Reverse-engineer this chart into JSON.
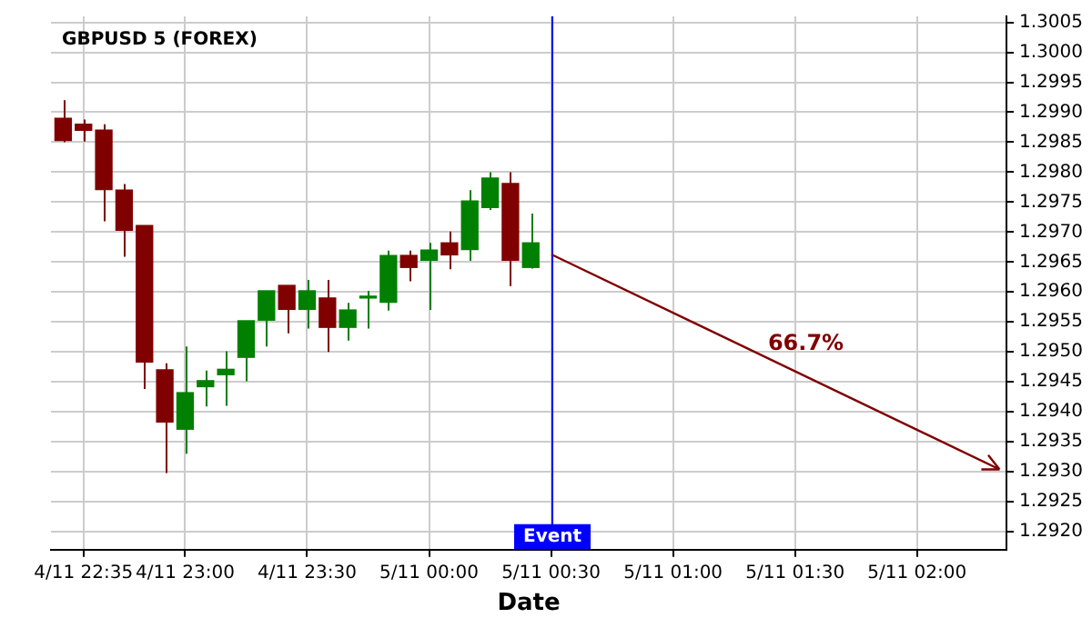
{
  "chart_data": {
    "type": "candlestick",
    "title": "GBPUSD 5 (FOREX)",
    "xlabel": "Date",
    "x": [
      "--11-04T22:30",
      "--11-04T22:35",
      "--11-04T22:40",
      "--11-04T22:45",
      "--11-04T22:50",
      "--11-04T22:55",
      "--11-04T23:00",
      "--11-04T23:05",
      "--11-04T23:10",
      "--11-04T23:15",
      "--11-04T23:20",
      "--11-04T23:25",
      "--11-04T23:30",
      "--11-04T23:35",
      "--11-04T23:40",
      "--11-04T23:45",
      "--11-04T23:50",
      "--11-04T23:55",
      "--11-05T00:00",
      "--11-05T00:05",
      "--11-05T00:10",
      "--11-05T00:15",
      "--11-05T00:20",
      "--11-05T00:25"
    ],
    "ohlc": [
      [
        1.2989,
        1.2992,
        1.2985,
        1.29853
      ],
      [
        1.2988,
        1.29888,
        1.29851,
        1.2987
      ],
      [
        1.2987,
        1.2988,
        1.29718,
        1.29771
      ],
      [
        1.2977,
        1.2978,
        1.29659,
        1.29703
      ],
      [
        1.29711,
        1.29711,
        1.29438,
        1.29483
      ],
      [
        1.2947,
        1.29481,
        1.29298,
        1.29383
      ],
      [
        1.29371,
        1.29509,
        1.2933,
        1.29432
      ],
      [
        1.29442,
        1.29469,
        1.29409,
        1.29452
      ],
      [
        1.29462,
        1.29501,
        1.2941,
        1.29471
      ],
      [
        1.29491,
        1.29552,
        1.29451,
        1.29552
      ],
      [
        1.29553,
        1.29602,
        1.29509,
        1.29602
      ],
      [
        1.29611,
        1.29611,
        1.29531,
        1.29571
      ],
      [
        1.29571,
        1.2962,
        1.29539,
        1.29602
      ],
      [
        1.2959,
        1.2962,
        1.295,
        1.29541
      ],
      [
        1.29541,
        1.29582,
        1.29519,
        1.2957
      ],
      [
        1.2959,
        1.29602,
        1.29539,
        1.29592
      ],
      [
        1.29583,
        1.29669,
        1.29569,
        1.29661
      ],
      [
        1.29661,
        1.29669,
        1.29618,
        1.29641
      ],
      [
        1.29653,
        1.29682,
        1.2957,
        1.2967
      ],
      [
        1.29682,
        1.29701,
        1.29638,
        1.29662
      ],
      [
        1.29671,
        1.2977,
        1.29652,
        1.29752
      ],
      [
        1.29741,
        1.298,
        1.29737,
        1.2979
      ],
      [
        1.29781,
        1.298,
        1.2961,
        1.29653
      ],
      [
        1.29641,
        1.29731,
        1.29639,
        1.29682
      ]
    ],
    "colors": [
      "#800000",
      "#800000",
      "#800000",
      "#800000",
      "#800000",
      "#800000",
      "#008000",
      "#008000",
      "#008000",
      "#008000",
      "#008000",
      "#800000",
      "#008000",
      "#800000",
      "#008000",
      "#008000",
      "#008000",
      "#800000",
      "#008000",
      "#800000",
      "#008000",
      "#008000",
      "#800000",
      "#008000"
    ],
    "ref_lines": [
      {
        "axis": "x",
        "value": "--11-05T00:30",
        "label": "Event",
        "color": "#0000ff"
      }
    ],
    "annotations": [
      "66.7%"
    ],
    "xlim": [
      "--11-04T22:27",
      "--11-05T02:22"
    ],
    "ylim": [
      1.2917,
      1.3006
    ],
    "xticks": [
      {
        "value": "--11-04T22:35",
        "label": "4/11 22:35"
      },
      {
        "value": "--11-04T23:00",
        "label": "4/11 23:00"
      },
      {
        "value": "--11-04T23:30",
        "label": "4/11 23:30"
      },
      {
        "value": "--11-05T00:00",
        "label": "5/11 00:00"
      },
      {
        "value": "--11-05T00:30",
        "label": "5/11 00:30"
      },
      {
        "value": "--11-05T01:00",
        "label": "5/11 01:00"
      },
      {
        "value": "--11-05T01:30",
        "label": "5/11 01:30"
      },
      {
        "value": "--11-05T02:00",
        "label": "5/11 02:00"
      }
    ],
    "yticks": [
      {
        "value": 1.292,
        "label": "1.2920"
      },
      1.2925,
      {
        "value": 1.293,
        "label": "1.2930"
      },
      1.2935,
      {
        "value": 1.294,
        "label": "1.2940"
      },
      1.2945,
      {
        "value": 1.295,
        "label": "1.2950"
      },
      1.2955,
      {
        "value": 1.296,
        "label": "1.2960"
      },
      1.2965,
      {
        "value": 1.297,
        "label": "1.2970"
      },
      1.2975,
      {
        "value": 1.298,
        "label": "1.2980"
      },
      1.2985,
      {
        "value": 1.299,
        "label": "1.2990"
      },
      1.2995,
      {
        "value": 1.3,
        "label": "1.3000"
      },
      1.3005
    ],
    "grid": true
  }
}
